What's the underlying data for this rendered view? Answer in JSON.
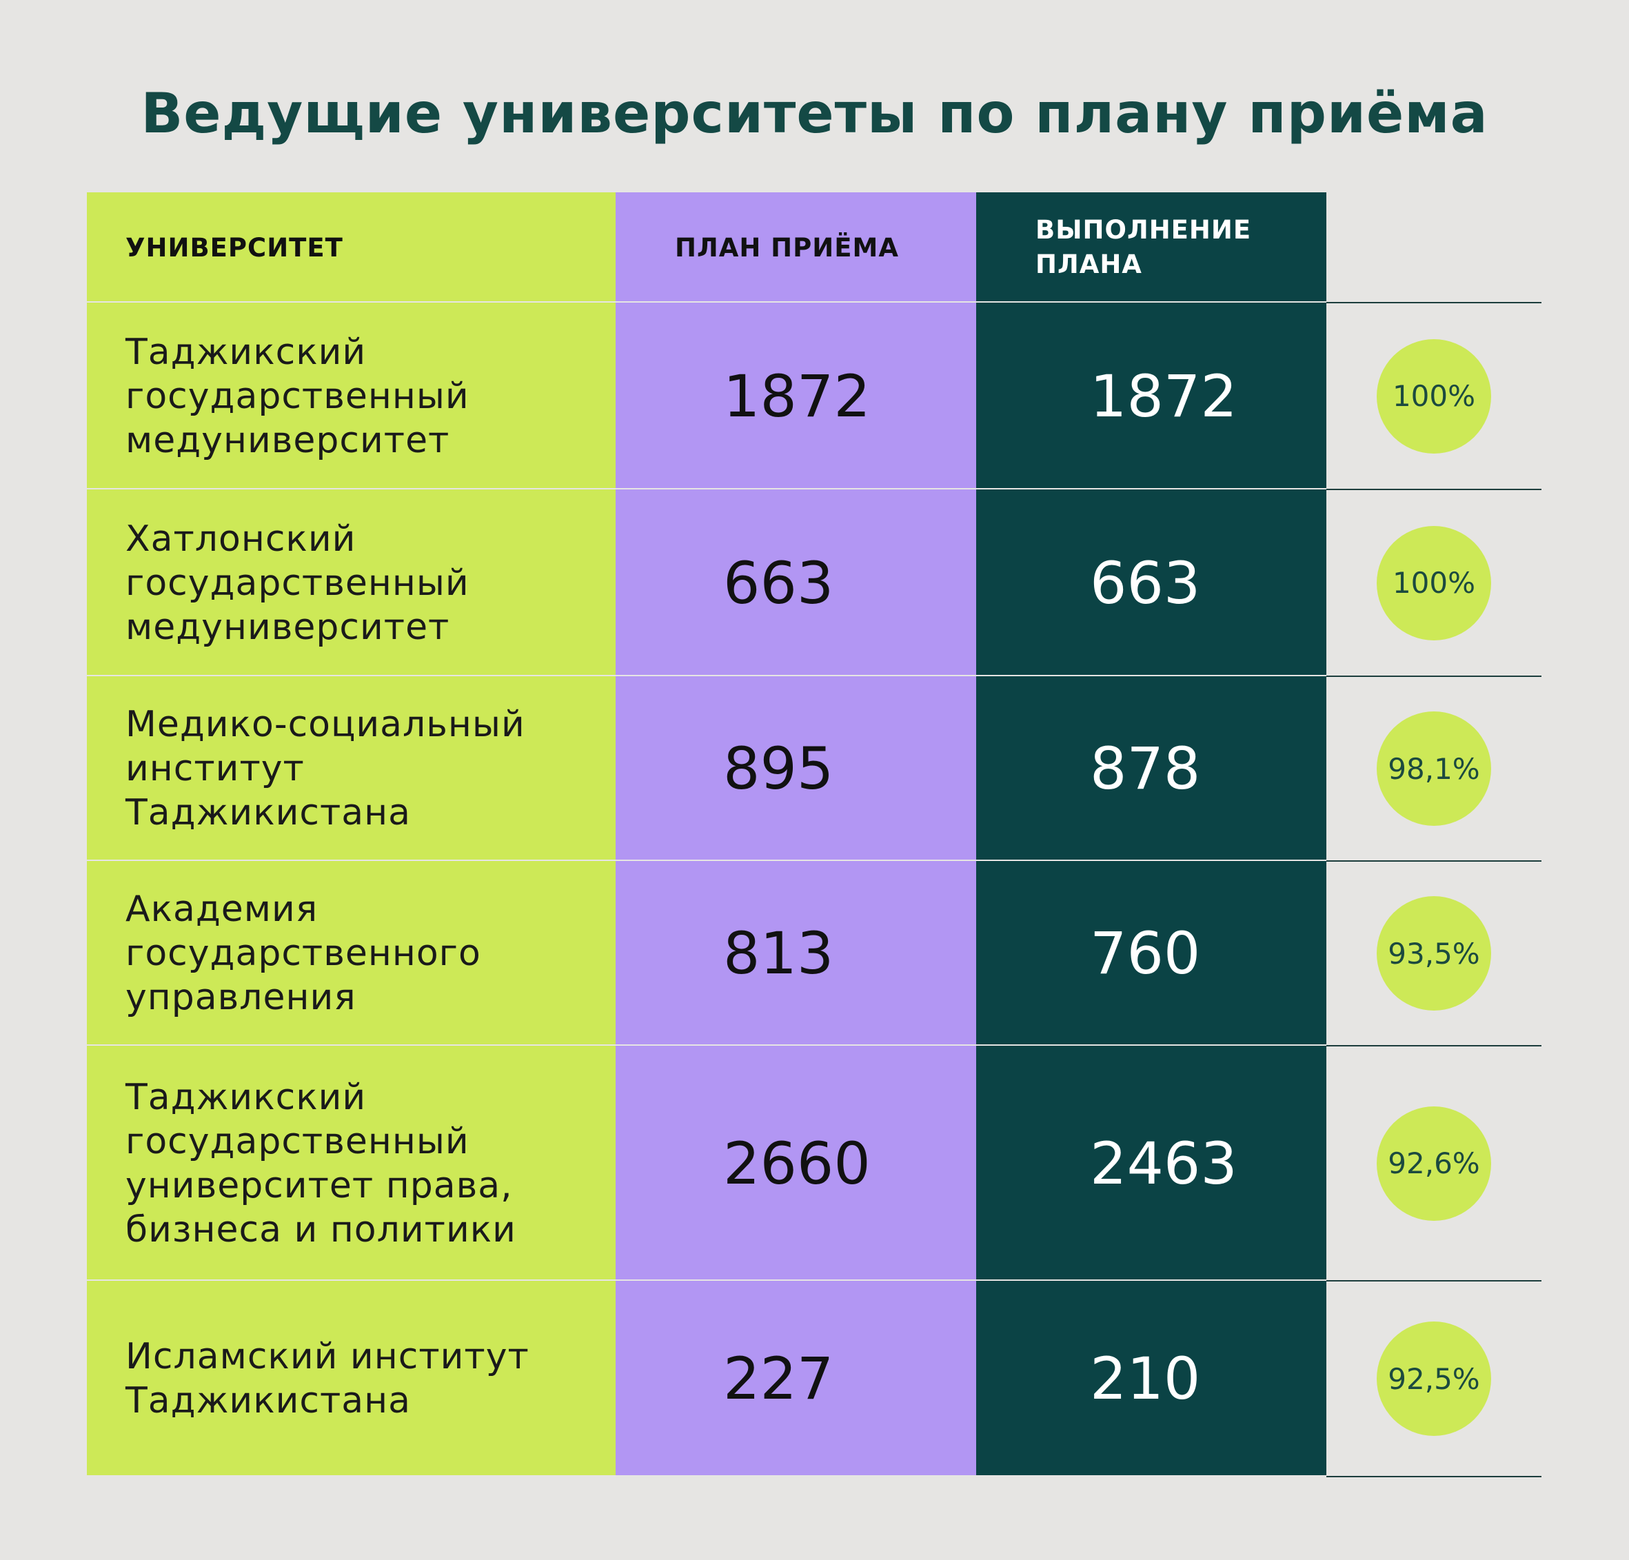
{
  "title": "Ведущие университеты по плану приёма",
  "chart_data": {
    "type": "table",
    "columns": [
      "УНИВЕРСИТЕТ",
      "ПЛАН ПРИЁМА",
      "ВЫПОЛНЕНИЕ ПЛАНА",
      ""
    ],
    "rows": [
      {
        "university": "Таджикский государственный медуниверситет",
        "plan": "1872",
        "done": "1872",
        "percent": "100%"
      },
      {
        "university": "Хатлонский государственный медуниверситет",
        "plan": "663",
        "done": "663",
        "percent": "100%"
      },
      {
        "university": "Медико-социальный институт Таджикистана",
        "plan": "895",
        "done": "878",
        "percent": "98,1%"
      },
      {
        "university": "Академия государственного управления",
        "plan": "813",
        "done": "760",
        "percent": "93,5%"
      },
      {
        "university": "Таджикский государственный университет права, бизнеса и политики",
        "plan": "2660",
        "done": "2463",
        "percent": "92,6%"
      },
      {
        "university": "Исламский институт Таджикистана",
        "plan": "227",
        "done": "210",
        "percent": "92,5%"
      }
    ]
  },
  "colors": {
    "background": "#e6e5e3",
    "university_column": "#cde957",
    "plan_column": "#b296f3",
    "done_column": "#0b4345",
    "title": "#144945",
    "badge": "#cde957"
  }
}
